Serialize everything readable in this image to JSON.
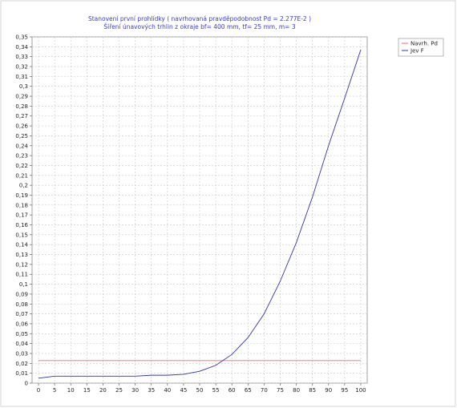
{
  "chart_data": {
    "type": "line",
    "title": "Stanovení první prohlídky ( navrhovaná pravděpodobnost Pd = 2.277E-2 )",
    "subtitle": "Šíření únavových trhlin z okraje bf= 400 mm, tf= 25 mm, m= 3",
    "xlabel": "",
    "ylabel": "",
    "xlim": [
      -2,
      102
    ],
    "ylim": [
      0,
      0.35
    ],
    "x_ticks": [
      0,
      5,
      10,
      15,
      20,
      25,
      30,
      35,
      40,
      45,
      50,
      55,
      60,
      65,
      70,
      75,
      80,
      85,
      90,
      95,
      100
    ],
    "y_ticks": [
      0,
      0.01,
      0.02,
      0.03,
      0.04,
      0.05,
      0.06,
      0.07,
      0.08,
      0.09,
      0.1,
      0.11,
      0.12,
      0.13,
      0.14,
      0.15,
      0.16,
      0.17,
      0.18,
      0.19,
      0.2,
      0.21,
      0.22,
      0.23,
      0.24,
      0.25,
      0.26,
      0.27,
      0.28,
      0.29,
      0.3,
      0.31,
      0.32,
      0.33,
      0.34,
      0.35
    ],
    "y_tick_labels": [
      "0",
      "0,01",
      "0,02",
      "0,03",
      "0,04",
      "0,05",
      "0,06",
      "0,07",
      "0,08",
      "0,09",
      "0,1",
      "0,11",
      "0,12",
      "0,13",
      "0,14",
      "0,15",
      "0,16",
      "0,17",
      "0,18",
      "0,19",
      "0,2",
      "0,21",
      "0,22",
      "0,23",
      "0,24",
      "0,25",
      "0,26",
      "0,27",
      "0,28",
      "0,29",
      "0,3",
      "0,31",
      "0,32",
      "0,33",
      "0,34",
      "0,35"
    ],
    "grid": true,
    "legend_position": "right",
    "series": [
      {
        "name": "Navrh. Pd",
        "color": "#ff6666",
        "x": [
          0,
          100
        ],
        "y": [
          0.0228,
          0.0228
        ]
      },
      {
        "name": "Jev F",
        "color": "#3333aa",
        "x": [
          0,
          5,
          10,
          15,
          20,
          25,
          30,
          35,
          40,
          45,
          50,
          55,
          60,
          65,
          70,
          75,
          80,
          85,
          90,
          95,
          100
        ],
        "y": [
          0.005,
          0.007,
          0.007,
          0.007,
          0.007,
          0.007,
          0.007,
          0.008,
          0.008,
          0.009,
          0.012,
          0.018,
          0.029,
          0.046,
          0.07,
          0.103,
          0.142,
          0.188,
          0.24,
          0.288,
          0.337
        ]
      }
    ]
  }
}
